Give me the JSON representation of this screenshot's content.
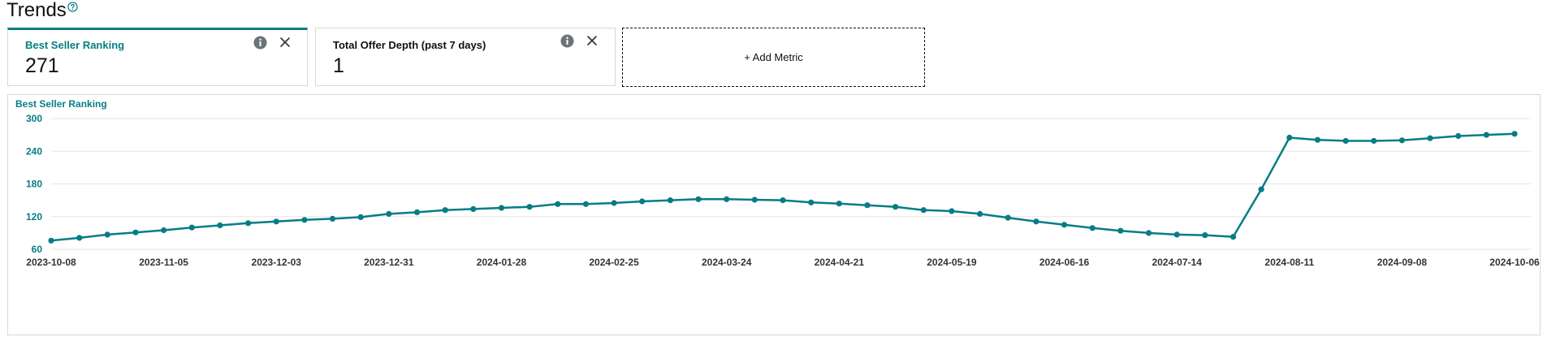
{
  "page": {
    "title": "Trends"
  },
  "metrics": [
    {
      "label": "Best Seller Ranking",
      "value": "271",
      "selected": true
    },
    {
      "label": "Total Offer Depth (past 7 days)",
      "value": "1",
      "selected": false
    }
  ],
  "add_metric_label": "+ Add Metric",
  "colors": {
    "accent": "#067d85",
    "grid": "#e6e6e6",
    "border": "#d5d9d9"
  },
  "chart_data": {
    "type": "line",
    "title": "Best Seller Ranking",
    "ylim": [
      60,
      300
    ],
    "y_ticks": [
      "300",
      "240",
      "180",
      "120",
      "60"
    ],
    "x_tick_labels": [
      "2023-10-08",
      "2023-11-05",
      "2023-12-03",
      "2023-12-31",
      "2024-01-28",
      "2024-02-25",
      "2024-03-24",
      "2024-04-21",
      "2024-05-19",
      "2024-06-16",
      "2024-07-14",
      "2024-08-11",
      "2024-09-08",
      "2024-10-06"
    ],
    "grid": true,
    "series": [
      {
        "x": [
          "2023-10-08",
          "2023-10-15",
          "2023-10-22",
          "2023-10-29",
          "2023-11-05",
          "2023-11-12",
          "2023-11-19",
          "2023-11-26",
          "2023-12-03",
          "2023-12-10",
          "2023-12-17",
          "2023-12-24",
          "2023-12-31",
          "2024-01-07",
          "2024-01-14",
          "2024-01-21",
          "2024-01-28",
          "2024-02-04",
          "2024-02-11",
          "2024-02-18",
          "2024-02-25",
          "2024-03-03",
          "2024-03-10",
          "2024-03-17",
          "2024-03-24",
          "2024-03-31",
          "2024-04-07",
          "2024-04-14",
          "2024-04-21",
          "2024-04-28",
          "2024-05-05",
          "2024-05-12",
          "2024-05-19",
          "2024-05-26",
          "2024-06-02",
          "2024-06-09",
          "2024-06-16",
          "2024-06-23",
          "2024-06-30",
          "2024-07-07",
          "2024-07-14",
          "2024-07-21",
          "2024-07-28",
          "2024-08-04",
          "2024-08-11",
          "2024-08-18",
          "2024-08-25",
          "2024-09-01",
          "2024-09-08",
          "2024-09-15",
          "2024-09-22",
          "2024-09-29",
          "2024-10-06"
        ],
        "values": [
          76,
          81,
          87,
          91,
          95,
          100,
          104,
          108,
          111,
          114,
          116,
          119,
          125,
          128,
          132,
          134,
          136,
          138,
          143,
          143,
          145,
          148,
          150,
          152,
          152,
          151,
          150,
          146,
          144,
          141,
          138,
          132,
          130,
          125,
          118,
          111,
          105,
          99,
          94,
          90,
          87,
          86,
          83,
          170,
          265,
          261,
          259,
          259,
          260,
          264,
          268,
          270,
          272
        ]
      }
    ]
  }
}
